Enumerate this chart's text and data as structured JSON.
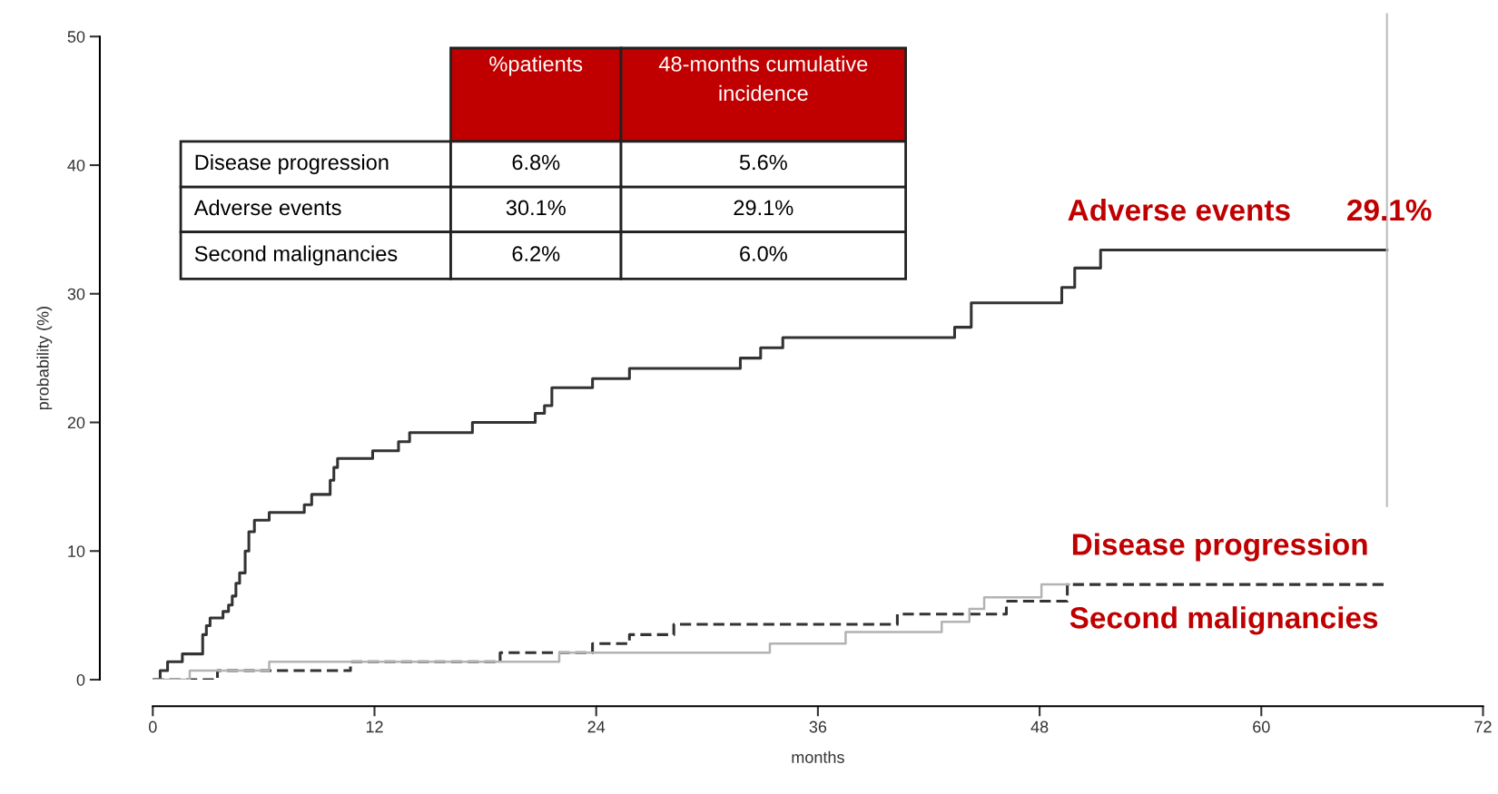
{
  "chart_data": {
    "type": "step",
    "xlabel": "months",
    "ylabel": "probability (%)",
    "xlim": [
      0,
      72
    ],
    "xticks": [
      0,
      12,
      24,
      36,
      48,
      60,
      72
    ],
    "ylim": [
      0,
      50
    ],
    "yticks": [
      0,
      10,
      20,
      30,
      40,
      50
    ],
    "grid": false,
    "legend": false,
    "marker": "none",
    "series": [
      {
        "name": "Adverse events",
        "color": "#333333",
        "line_style": "solid",
        "x": [
          0,
          0.4,
          0.8,
          1.6,
          2.7,
          2.9,
          3.1,
          3.8,
          4.1,
          4.3,
          4.5,
          4.7,
          5.0,
          5.2,
          5.5,
          6.3,
          8.2,
          8.6,
          9.6,
          9.8,
          10.0,
          11.9,
          13.3,
          13.9,
          17.3,
          20.7,
          21.2,
          21.6,
          23.8,
          25.8,
          31.8,
          32.9,
          34.1,
          43.4,
          44.3,
          49.2,
          49.9,
          51.3,
          66.8
        ],
        "values": [
          0,
          0.7,
          1.4,
          2.0,
          3.5,
          4.2,
          4.8,
          5.3,
          5.8,
          6.5,
          7.5,
          8.3,
          10.0,
          11.5,
          12.4,
          13.0,
          13.6,
          14.4,
          15.5,
          16.5,
          17.2,
          17.8,
          18.5,
          19.2,
          20.0,
          20.7,
          21.3,
          22.7,
          23.4,
          24.2,
          25.0,
          25.8,
          26.6,
          27.4,
          29.3,
          30.5,
          32.0,
          33.4,
          33.4
        ]
      },
      {
        "name": "Disease progression",
        "color": "#333333",
        "line_style": "dashed",
        "x": [
          0,
          3.5,
          10.7,
          18.8,
          23.8,
          25.8,
          28.2,
          40.3,
          46.2,
          49.5,
          66.8
        ],
        "values": [
          0,
          0.7,
          1.4,
          2.1,
          2.8,
          3.5,
          4.3,
          5.1,
          6.1,
          7.4,
          7.4
        ]
      },
      {
        "name": "Second malignancies",
        "color": "#b3b3b3",
        "line_style": "solid",
        "x": [
          0,
          2.0,
          6.3,
          22.0,
          33.4,
          37.5,
          42.7,
          44.2,
          45.0,
          48.1,
          49.6
        ],
        "values": [
          0,
          0.7,
          1.4,
          2.1,
          2.8,
          3.7,
          4.5,
          5.5,
          6.4,
          7.4,
          7.4
        ]
      }
    ],
    "ref_lines": [
      {
        "axis": "x",
        "value": 66.8,
        "color": "#bbbbbb",
        "line_style": "solid"
      }
    ],
    "annotations": [
      "%patients",
      "48-months cumulative\nincidence",
      "Disease progression",
      "6.8%",
      "5.6%",
      "Adverse events",
      "30.1%",
      "29.1%",
      "Second malignancies",
      "6.2%",
      "6.0%",
      "29.1%"
    ]
  }
}
